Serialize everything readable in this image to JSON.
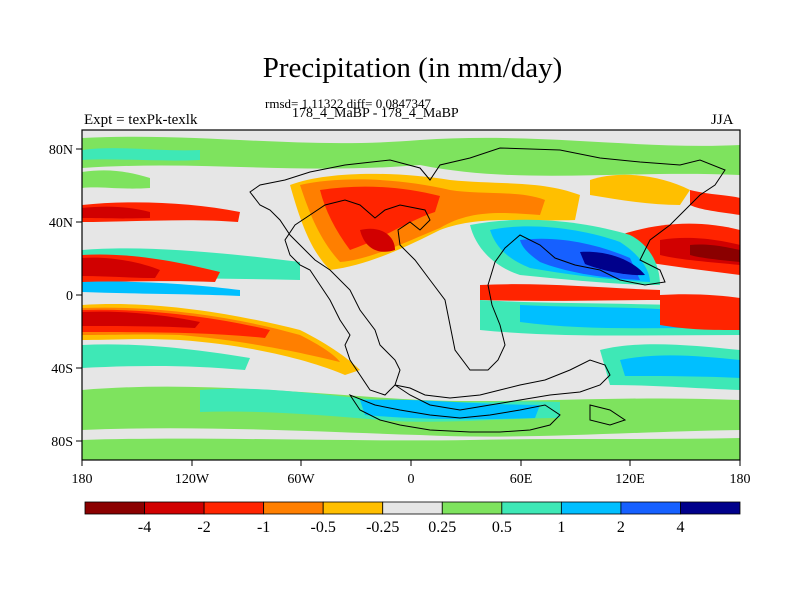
{
  "map": {
    "title": "Precipitation (in mm/day)",
    "stats": "rmsd= 1.11322 diff= 0.0847347",
    "subtitle": "178_4_MaBP - 178_4_MaBP",
    "left_label": "Expt = texPk-texlk",
    "right_label": "JJA",
    "background_color": "#e6e6e6",
    "lon_ticks": [
      "180",
      "120W",
      "60W",
      "0",
      "60E",
      "120E",
      "180"
    ],
    "lat_ticks": [
      "80N",
      "40N",
      "0",
      "40S",
      "80S"
    ]
  },
  "colorbar": {
    "colors": [
      "#8b0000",
      "#d10000",
      "#ff2400",
      "#ff7f00",
      "#ffbf00",
      "#e6e6e6",
      "#7ee35e",
      "#3ee8b6",
      "#00bfff",
      "#1660ff",
      "#00008b"
    ],
    "labels": [
      "-4",
      "-2",
      "-1",
      "-0.5",
      "-0.25",
      "0.25",
      "0.5",
      "1",
      "2",
      "4"
    ]
  }
}
